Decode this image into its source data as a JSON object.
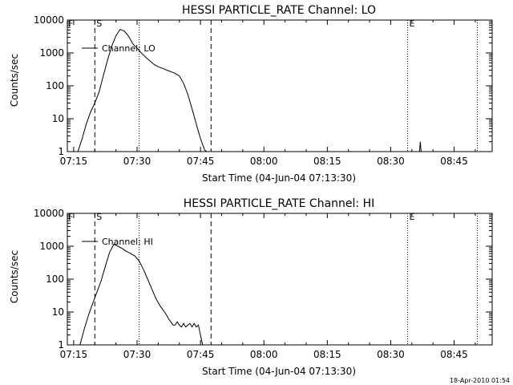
{
  "chart_data": [
    {
      "type": "line",
      "title": "HESSI PARTICLE_RATE Channel: LO",
      "xlabel": "Start Time (04-Jun-04 07:13:30)",
      "ylabel": "Counts/sec",
      "yscale": "log",
      "ylim": [
        1,
        10000
      ],
      "xlim": [
        "07:13:30",
        "08:54:00"
      ],
      "x_ticks": [
        "07:15",
        "07:30",
        "07:45",
        "08:00",
        "08:15",
        "08:30",
        "08:45"
      ],
      "y_ticks": [
        "1",
        "10",
        "100",
        "1000",
        "10000"
      ],
      "legend": "top-left",
      "series": [
        {
          "name": "Channel: LO",
          "x": [
            "07:16:00",
            "07:17:00",
            "07:18:00",
            "07:19:00",
            "07:20:00",
            "07:21:00",
            "07:22:00",
            "07:23:00",
            "07:24:00",
            "07:25:00",
            "07:26:00",
            "07:27:00",
            "07:28:00",
            "07:29:00",
            "07:30:00",
            "07:31:00",
            "07:32:00",
            "07:33:00",
            "07:34:00",
            "07:35:00",
            "07:36:00",
            "07:37:00",
            "07:38:00",
            "07:39:00",
            "07:40:00",
            "07:41:00",
            "07:42:00",
            "07:43:00",
            "07:44:00",
            "07:45:00",
            "07:46:00",
            "07:46:30"
          ],
          "values": [
            1,
            2.5,
            7,
            16,
            30,
            65,
            200,
            600,
            1600,
            3300,
            5200,
            4600,
            3200,
            1900,
            1400,
            1000,
            750,
            580,
            450,
            380,
            340,
            300,
            270,
            240,
            200,
            120,
            55,
            20,
            7,
            2.5,
            1.1,
            1
          ]
        }
      ],
      "markers": [
        {
          "label": "S",
          "time": "07:20:00",
          "style": "dashed"
        },
        {
          "label": "",
          "time": "07:30:30",
          "style": "dotted"
        },
        {
          "label": "",
          "time": "07:47:30",
          "style": "dashed"
        },
        {
          "label": "E",
          "time": "08:34:00",
          "style": "dotted"
        },
        {
          "label": "",
          "time": "08:50:30",
          "style": "dotted"
        }
      ],
      "f_label": "F",
      "spike": {
        "time": "08:37:00",
        "value": 2
      }
    },
    {
      "type": "line",
      "title": "HESSI PARTICLE_RATE Channel: HI",
      "xlabel": "Start Time (04-Jun-04 07:13:30)",
      "ylabel": "Counts/sec",
      "yscale": "log",
      "ylim": [
        1,
        10000
      ],
      "xlim": [
        "07:13:30",
        "08:54:00"
      ],
      "x_ticks": [
        "07:15",
        "07:30",
        "07:45",
        "08:00",
        "08:15",
        "08:30",
        "08:45"
      ],
      "y_ticks": [
        "1",
        "10",
        "100",
        "1000",
        "10000"
      ],
      "legend": "top-left",
      "series": [
        {
          "name": "Channel: HI",
          "x": [
            "07:16:30",
            "07:17:30",
            "07:18:30",
            "07:19:30",
            "07:20:30",
            "07:21:30",
            "07:22:30",
            "07:23:30",
            "07:24:30",
            "07:25:30",
            "07:26:30",
            "07:27:30",
            "07:28:30",
            "07:29:30",
            "07:30:30",
            "07:31:30",
            "07:32:30",
            "07:33:30",
            "07:34:30",
            "07:35:30",
            "07:36:30",
            "07:37:00",
            "07:37:30",
            "07:38:00",
            "07:38:30",
            "07:39:00",
            "07:39:30",
            "07:40:00",
            "07:40:30",
            "07:41:00",
            "07:41:30",
            "07:42:00",
            "07:42:30",
            "07:43:00",
            "07:43:30",
            "07:44:00",
            "07:44:30",
            "07:45:00",
            "07:45:30"
          ],
          "values": [
            1,
            3,
            8,
            18,
            40,
            90,
            250,
            650,
            1150,
            1000,
            850,
            700,
            600,
            500,
            350,
            200,
            100,
            50,
            25,
            15,
            10,
            8,
            6,
            5,
            4,
            4,
            5,
            4,
            3.5,
            4.5,
            3.5,
            4,
            4.5,
            3.5,
            4.5,
            3.5,
            4,
            2,
            1
          ]
        }
      ],
      "markers": [
        {
          "label": "S",
          "time": "07:20:00",
          "style": "dashed"
        },
        {
          "label": "",
          "time": "07:30:30",
          "style": "dotted"
        },
        {
          "label": "",
          "time": "07:47:30",
          "style": "dashed"
        },
        {
          "label": "E",
          "time": "08:34:00",
          "style": "dotted"
        },
        {
          "label": "",
          "time": "08:50:30",
          "style": "dotted"
        }
      ],
      "f_label": "F"
    }
  ],
  "footer": {
    "timestamp": "18-Apr-2010 01:54"
  }
}
